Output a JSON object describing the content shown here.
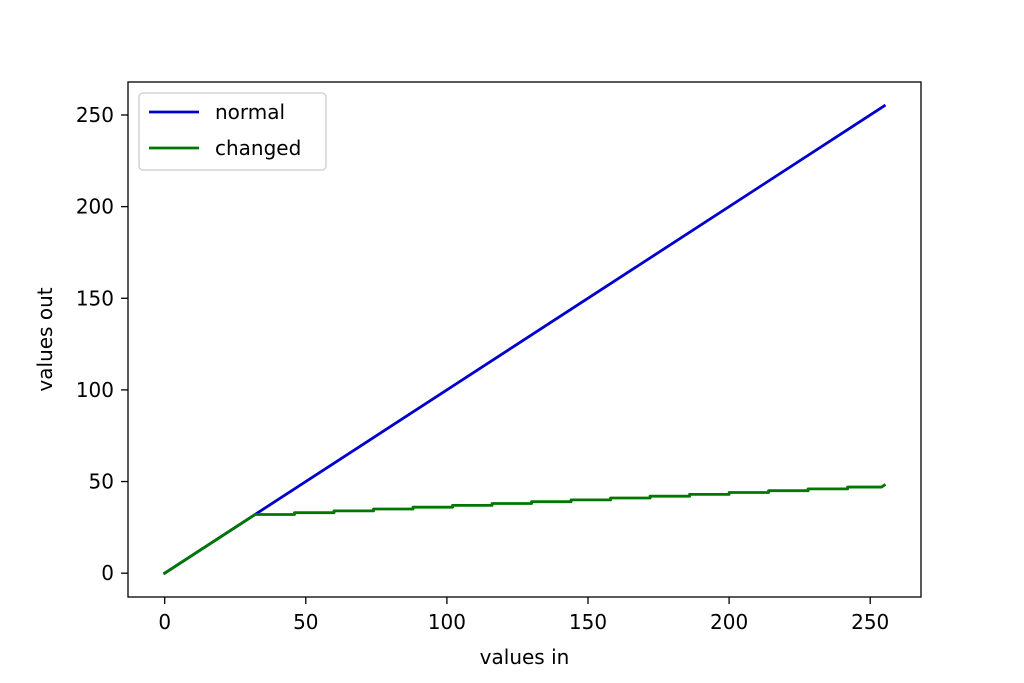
{
  "chart_data": {
    "type": "line",
    "title": "",
    "xlabel": "values in",
    "ylabel": "values out",
    "xlim": [
      -13,
      268
    ],
    "ylim": [
      -13,
      268
    ],
    "xticks": [
      0,
      50,
      100,
      150,
      200,
      250
    ],
    "yticks": [
      0,
      50,
      100,
      150,
      200,
      250
    ],
    "xtick_labels": [
      "0",
      "50",
      "100",
      "150",
      "200",
      "250"
    ],
    "ytick_labels": [
      "0",
      "50",
      "100",
      "150",
      "200",
      "250"
    ],
    "grid": false,
    "legend_position": "top-left",
    "series": [
      {
        "name": "normal",
        "color": "#0000cc",
        "x": [
          0,
          255
        ],
        "y": [
          0,
          255
        ]
      },
      {
        "name": "changed",
        "color": "#007700",
        "x": [
          0,
          32,
          46,
          46,
          60,
          60,
          74,
          74,
          88,
          88,
          102,
          102,
          116,
          116,
          130,
          130,
          144,
          144,
          158,
          158,
          172,
          172,
          186,
          186,
          200,
          200,
          214,
          214,
          228,
          228,
          242,
          242,
          254,
          255
        ],
        "y": [
          0,
          32,
          32,
          33,
          33,
          34,
          34,
          35,
          35,
          36,
          36,
          37,
          37,
          38,
          38,
          39,
          39,
          40,
          40,
          41,
          41,
          42,
          42,
          43,
          43,
          44,
          44,
          45,
          45,
          46,
          46,
          47,
          47,
          48
        ]
      }
    ]
  }
}
